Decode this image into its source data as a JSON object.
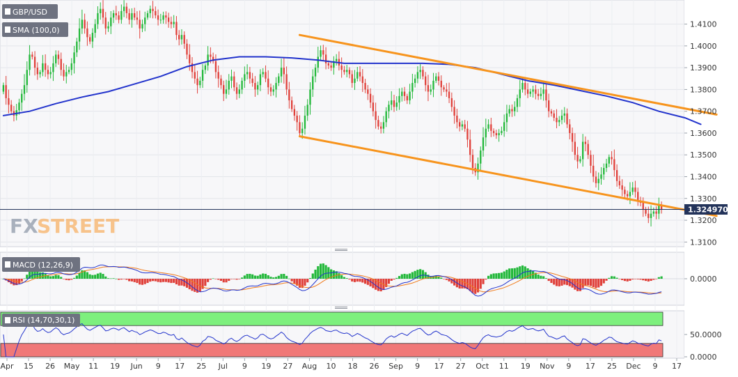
{
  "header": {
    "pair": "GBP/USD",
    "sma": "SMA (100,0)",
    "macd": "MACD (12,26,9)",
    "rsi": "RSI (14,70,30,1)",
    "brand_fx": "FX",
    "brand_street": "STREET"
  },
  "colors": {
    "bull": "#22b83a",
    "bear": "#e0403a",
    "sma": "#2233cc",
    "channel": "#f7941d",
    "macd_line": "#2233cc",
    "signal_line": "#f07a1a",
    "overbought": "#7df07d",
    "oversold": "#f07878",
    "rsi_line": "#2233cc"
  },
  "chart_data": [
    {
      "type": "candlestick",
      "pane": "price",
      "ylim": [
        1.3085,
        1.4185
      ],
      "y_ticks": [
        "1.4100",
        "1.4000",
        "1.3900",
        "1.3800",
        "1.3700",
        "1.3600",
        "1.3500",
        "1.3400",
        "1.3300",
        "1.3200",
        "1.3100"
      ],
      "x_ticks": [
        "Apr",
        "15",
        "26",
        "May",
        "11",
        "19",
        "Jun",
        "9",
        "17",
        "25",
        "Jul",
        "9",
        "19",
        "27",
        "Aug",
        "10",
        "18",
        "26",
        "Sep",
        "9",
        "17",
        "27",
        "Oct",
        "11",
        "19",
        "Nov",
        "9",
        "17",
        "25",
        "Dec",
        "9",
        "17"
      ],
      "last_price": "1.324970",
      "last_value": 1.32497,
      "series": [
        {
          "name": "SMA (100,0)",
          "points": [
            [
              0,
              1.368
            ],
            [
              10,
              1.37
            ],
            [
              20,
              1.3735
            ],
            [
              30,
              1.3765
            ],
            [
              40,
              1.379
            ],
            [
              50,
              1.3825
            ],
            [
              60,
              1.386
            ],
            [
              70,
              1.3905
            ],
            [
              80,
              1.3935
            ],
            [
              90,
              1.395
            ],
            [
              100,
              1.395
            ],
            [
              110,
              1.3945
            ],
            [
              120,
              1.3935
            ],
            [
              130,
              1.392
            ],
            [
              140,
              1.392
            ],
            [
              150,
              1.392
            ],
            [
              160,
              1.392
            ],
            [
              170,
              1.3915
            ],
            [
              180,
              1.39
            ],
            [
              190,
              1.387
            ],
            [
              200,
              1.384
            ],
            [
              210,
              1.382
            ],
            [
              220,
              1.3795
            ],
            [
              230,
              1.377
            ],
            [
              240,
              1.374
            ],
            [
              250,
              1.37
            ],
            [
              260,
              1.367
            ],
            [
              266,
              1.364
            ]
          ]
        },
        {
          "name": "Upper channel",
          "points": [
            [
              113,
              1.405
            ],
            [
              272,
              1.3685
            ]
          ]
        },
        {
          "name": "Lower channel",
          "points": [
            [
              113,
              1.3585
            ],
            [
              272,
              1.322
            ]
          ]
        }
      ],
      "closes": [
        1.382,
        1.376,
        1.373,
        1.37,
        1.368,
        1.3705,
        1.374,
        1.378,
        1.382,
        1.389,
        1.396,
        1.395,
        1.39,
        1.387,
        1.388,
        1.392,
        1.389,
        1.387,
        1.388,
        1.392,
        1.396,
        1.394,
        1.389,
        1.386,
        1.388,
        1.389,
        1.392,
        1.397,
        1.402,
        1.408,
        1.412,
        1.408,
        1.404,
        1.402,
        1.406,
        1.41,
        1.415,
        1.417,
        1.413,
        1.408,
        1.409,
        1.413,
        1.415,
        1.414,
        1.412,
        1.416,
        1.418,
        1.415,
        1.412,
        1.415,
        1.413,
        1.412,
        1.408,
        1.41,
        1.413,
        1.415,
        1.417,
        1.416,
        1.414,
        1.412,
        1.412,
        1.414,
        1.413,
        1.411,
        1.41,
        1.411,
        1.405,
        1.403,
        1.405,
        1.401,
        1.396,
        1.392,
        1.388,
        1.385,
        1.382,
        1.384,
        1.389,
        1.391,
        1.396,
        1.395,
        1.393,
        1.388,
        1.385,
        1.382,
        1.378,
        1.38,
        1.384,
        1.386,
        1.381,
        1.378,
        1.38,
        1.384,
        1.387,
        1.388,
        1.385,
        1.383,
        1.38,
        1.382,
        1.387,
        1.388,
        1.385,
        1.381,
        1.379,
        1.38,
        1.383,
        1.386,
        1.39,
        1.387,
        1.38,
        1.375,
        1.371,
        1.368,
        1.365,
        1.36,
        1.362,
        1.368,
        1.373,
        1.38,
        1.386,
        1.39,
        1.395,
        1.398,
        1.396,
        1.392,
        1.391,
        1.39,
        1.393,
        1.394,
        1.391,
        1.389,
        1.388,
        1.389,
        1.387,
        1.383,
        1.385,
        1.388,
        1.386,
        1.383,
        1.38,
        1.378,
        1.374,
        1.37,
        1.366,
        1.363,
        1.362,
        1.365,
        1.37,
        1.373,
        1.375,
        1.372,
        1.374,
        1.377,
        1.379,
        1.377,
        1.375,
        1.379,
        1.383,
        1.385,
        1.388,
        1.389,
        1.386,
        1.382,
        1.379,
        1.38,
        1.384,
        1.386,
        1.384,
        1.381,
        1.38,
        1.379,
        1.376,
        1.372,
        1.368,
        1.365,
        1.363,
        1.364,
        1.362,
        1.357,
        1.35,
        1.344,
        1.342,
        1.346,
        1.352,
        1.358,
        1.362,
        1.364,
        1.361,
        1.36,
        1.359,
        1.36,
        1.361,
        1.365,
        1.369,
        1.371,
        1.37,
        1.372,
        1.376,
        1.38,
        1.383,
        1.38,
        1.378,
        1.379,
        1.38,
        1.378,
        1.377,
        1.378,
        1.38,
        1.375,
        1.37,
        1.369,
        1.367,
        1.365,
        1.366,
        1.368,
        1.369,
        1.364,
        1.36,
        1.356,
        1.35,
        1.347,
        1.348,
        1.356,
        1.355,
        1.35,
        1.345,
        1.34,
        1.337,
        1.339,
        1.341,
        1.344,
        1.346,
        1.349,
        1.348,
        1.343,
        1.338,
        1.336,
        1.334,
        1.332,
        1.331,
        1.333,
        1.335,
        1.333,
        1.329,
        1.328,
        1.325,
        1.323,
        1.321,
        1.323,
        1.324,
        1.323,
        1.327,
        1.325
      ]
    },
    {
      "type": "histogram+line",
      "pane": "macd",
      "ylim": [
        -0.012,
        0.012
      ],
      "y_ticks": [
        "0.0000"
      ]
    },
    {
      "type": "line",
      "pane": "rsi",
      "ylim": [
        0,
        100
      ],
      "y_ticks": [
        "50.0000",
        "0.0000"
      ],
      "levels": [
        70,
        30
      ]
    }
  ]
}
